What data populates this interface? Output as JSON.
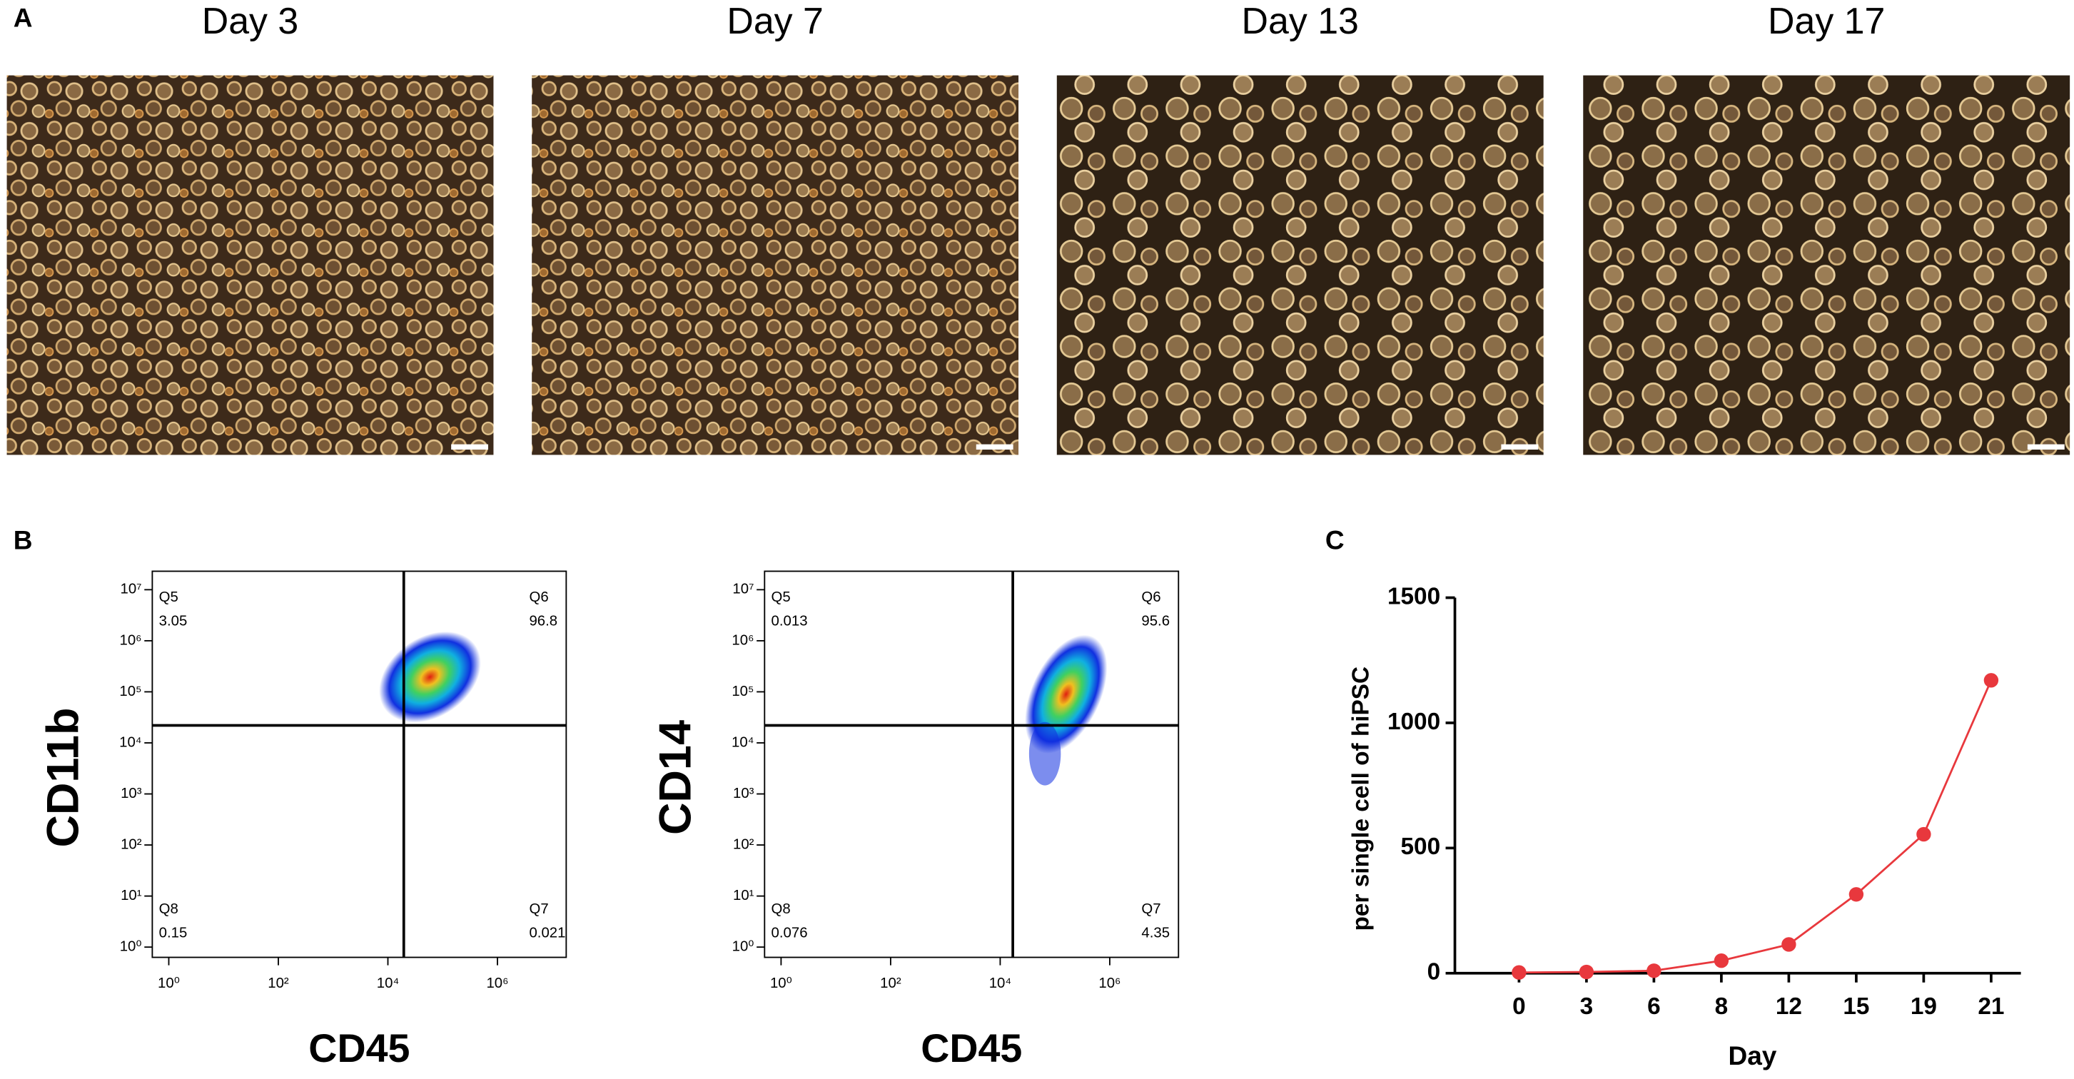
{
  "panel_a": {
    "label": "A",
    "images": [
      {
        "title": "Day 3"
      },
      {
        "title": "Day 7"
      },
      {
        "title": "Day 13"
      },
      {
        "title": "Day 17"
      }
    ]
  },
  "panel_b": {
    "label": "B",
    "plots": [
      {
        "y_label": "CD11b",
        "x_label": "CD45",
        "quadrants": [
          {
            "name": "Q5",
            "value": 3.05
          },
          {
            "name": "Q6",
            "value": 96.8
          },
          {
            "name": "Q8",
            "value": 0.15
          },
          {
            "name": "Q7",
            "value": 0.021
          }
        ],
        "xlim": [
          0.5,
          18000000
        ],
        "ylim": [
          0.63,
          23000000
        ],
        "xticks": [
          {
            "value": 1,
            "label": "10⁰"
          },
          {
            "value": 100,
            "label": "10²"
          },
          {
            "value": 10000,
            "label": "10⁴"
          },
          {
            "value": 1000000,
            "label": "10⁶"
          }
        ],
        "yticks": [
          {
            "value": 1,
            "label": "10⁰"
          },
          {
            "value": 10,
            "label": "10¹"
          },
          {
            "value": 100,
            "label": "10²"
          },
          {
            "value": 1000,
            "label": "10³"
          },
          {
            "value": 10000,
            "label": "10⁴"
          },
          {
            "value": 100000,
            "label": "10⁵"
          },
          {
            "value": 1000000,
            "label": "10⁶"
          },
          {
            "value": 10000000,
            "label": "10⁷"
          }
        ],
        "gate_x": 19500,
        "gate_y": 22000
      },
      {
        "y_label": "CD14",
        "x_label": "CD45",
        "quadrants": [
          {
            "name": "Q5",
            "value": 0.013
          },
          {
            "name": "Q6",
            "value": 95.6
          },
          {
            "name": "Q8",
            "value": 0.076
          },
          {
            "name": "Q7",
            "value": 4.35
          }
        ],
        "xlim": [
          0.5,
          18000000
        ],
        "ylim": [
          0.63,
          23000000
        ],
        "xticks": [
          {
            "value": 1,
            "label": "10⁰"
          },
          {
            "value": 100,
            "label": "10²"
          },
          {
            "value": 10000,
            "label": "10⁴"
          },
          {
            "value": 1000000,
            "label": "10⁶"
          }
        ],
        "yticks": [
          {
            "value": 1,
            "label": "10⁰"
          },
          {
            "value": 10,
            "label": "10¹"
          },
          {
            "value": 100,
            "label": "10²"
          },
          {
            "value": 1000,
            "label": "10³"
          },
          {
            "value": 10000,
            "label": "10⁴"
          },
          {
            "value": 100000,
            "label": "10⁵"
          },
          {
            "value": 1000000,
            "label": "10⁶"
          },
          {
            "value": 10000000,
            "label": "10⁷"
          }
        ],
        "gate_x": 17000,
        "gate_y": 22000
      }
    ]
  },
  "panel_c_label": "C",
  "chart_data": {
    "type": "line",
    "categories": [
      "0",
      "3",
      "6",
      "8",
      "12",
      "15",
      "19",
      "21"
    ],
    "values": [
      3,
      5,
      10,
      50,
      115,
      315,
      555,
      1170
    ],
    "ylim": [
      0,
      1500
    ],
    "yticks": [
      0,
      500,
      1000,
      1500
    ],
    "y_label": "per single cell of hiPSC",
    "x_label": "Day",
    "color": "#e8383d"
  }
}
